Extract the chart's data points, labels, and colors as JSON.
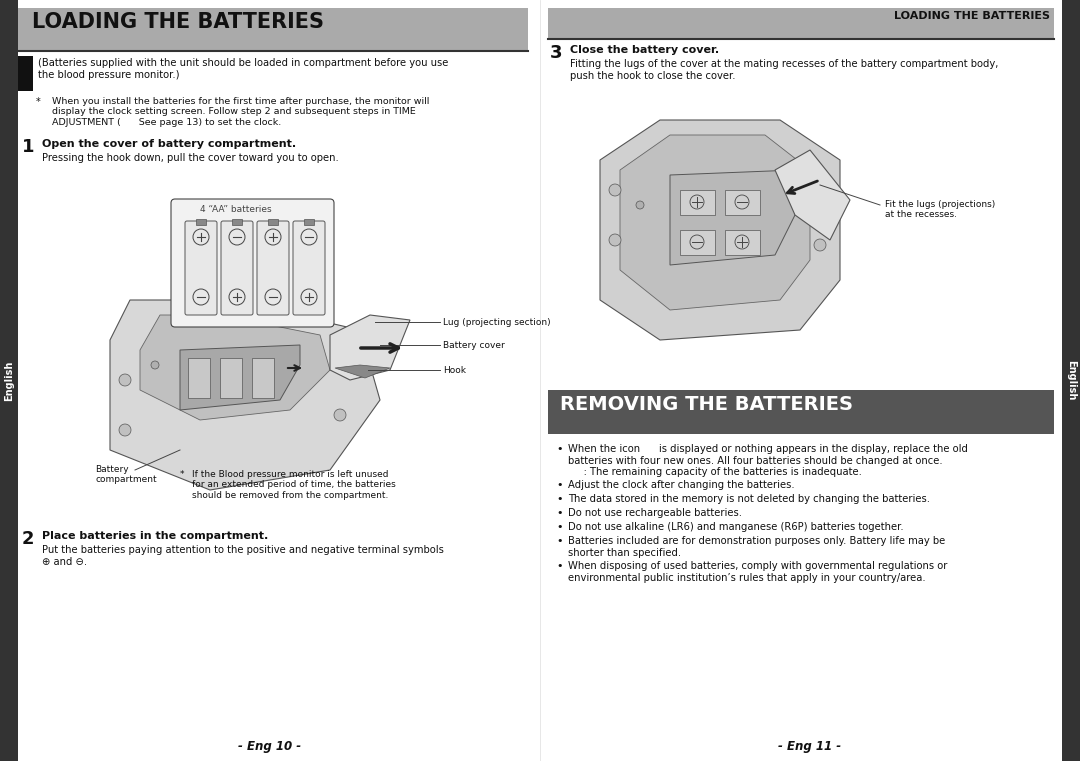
{
  "bg_color": "#ffffff",
  "left_header_bg": "#aaaaaa",
  "right_header_bg": "#aaaaaa",
  "removing_header_bg": "#555555",
  "sidebar_bg": "#333333",
  "sidebar_text": "English",
  "left_title": "LOADING THE BATTERIES",
  "right_header_title": "LOADING THE BATTERIES",
  "removing_title": "REMOVING THE BATTERIES",
  "left_intro": "(Batteries supplied with the unit should be loaded in compartment before you use\nthe blood pressure monitor.)",
  "note_star": "*",
  "note_text": "When you install the batteries for the first time after purchase, the monitor will\ndisplay the clock setting screen. Follow step 2 and subsequent steps in TIME\nADJUSTMENT (      See page 13) to set the clock.",
  "step1_num": "1",
  "step1_title": "Open the cover of battery compartment.",
  "step1_body": "Pressing the hook down, pull the cover toward you to open.",
  "battery_label": "4 “AA” batteries",
  "footnote_star": "*",
  "footnote_text": "If the Blood pressure monitor is left unused\nfor an extended period of time, the batteries\nshould be removed from the compartment.",
  "annotation_lug": "Lug (projecting section)",
  "annotation_battery_cover": "Battery cover",
  "annotation_hook": "Hook",
  "annotation_compartment": "Battery\ncompartment",
  "step2_num": "2",
  "step2_title": "Place batteries in the compartment.",
  "step2_body": "Put the batteries paying attention to the positive and negative terminal symbols\n⊕ and ⊖.",
  "footer_left": "- Eng 10 -",
  "step3_num": "3",
  "step3_title": "Close the battery cover.",
  "step3_body": "Fitting the lugs of the cover at the mating recesses of the battery compartment body,\npush the hook to close the cover.",
  "annotation_fit_lugs": "Fit the lugs (projections)\nat the recesses.",
  "removing_bullets": [
    "When the icon      is displayed or nothing appears in the display, replace the old\nbatteries with four new ones. All four batteries should be changed at once.\n     : The remaining capacity of the batteries is inadequate.",
    "Adjust the clock after changing the batteries.",
    "The data stored in the memory is not deleted by changing the batteries.",
    "Do not use rechargeable batteries.",
    "Do not use alkaline (LR6) and manganese (R6P) batteries together.",
    "Batteries included are for demonstration purposes only. Battery life may be\nshorter than specified.",
    "When disposing of used batteries, comply with governmental regulations or\nenvironmental public institution’s rules that apply in your country/area."
  ],
  "footer_right": "- Eng 11 -"
}
